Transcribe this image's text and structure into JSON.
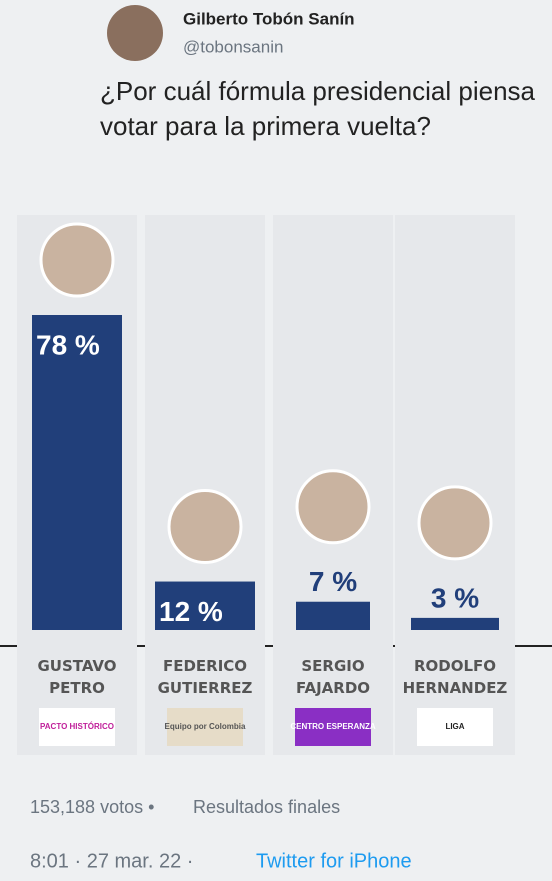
{
  "tweet": {
    "author": "Gilberto Tobón Sanín",
    "handle": "@tobonsanin",
    "text": "¿Por cuál fórmula presidencial piensa votar para la primera vuelta?"
  },
  "chart_data": {
    "type": "bar",
    "categories": [
      "GUSTAVO PETRO",
      "FEDERICO GUTIERREZ",
      "SERGIO FAJARDO",
      "RODOLFO HERNANDEZ"
    ],
    "values": [
      78,
      12,
      7,
      3
    ],
    "value_labels": [
      "78 %",
      "12 %",
      "7 %",
      "3 %"
    ],
    "color": "#213f7a"
  },
  "parties": [
    "PACTO HISTÓRICO",
    "Equipo por Colombia",
    "CENTRO ESPERANZA",
    "LIGA"
  ],
  "footer": {
    "votes": "153,188 votos •",
    "status": "Resultados finales",
    "time": "8:01 · 27 mar. 22 ·",
    "source": "Twitter for iPhone"
  }
}
